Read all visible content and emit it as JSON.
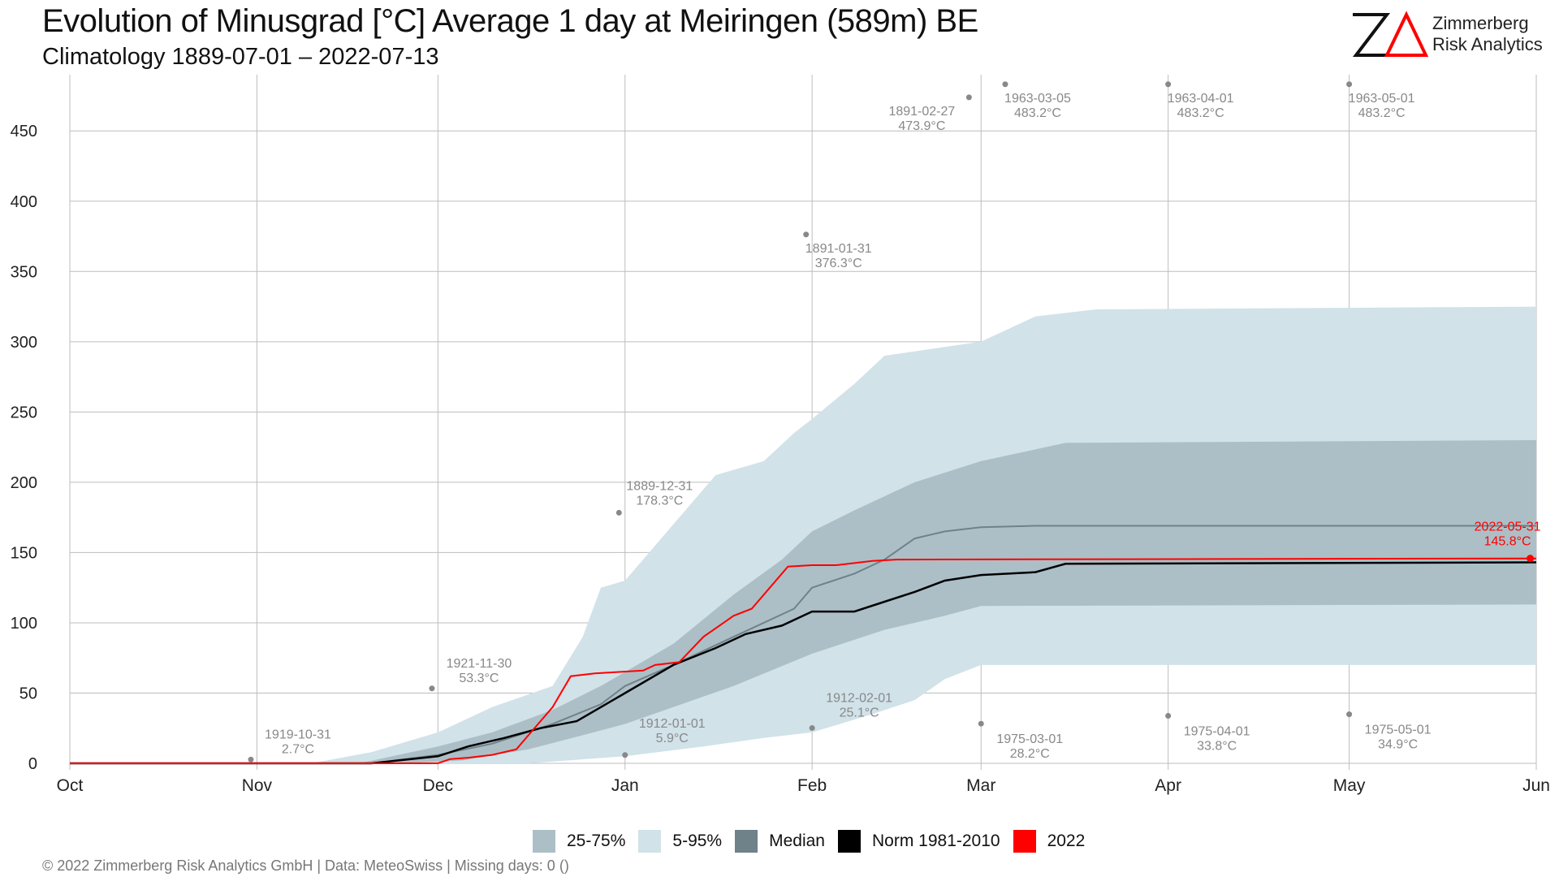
{
  "header": {
    "title": "Evolution of Minusgrad [°C] Average 1 day at Meiringen (589m) BE",
    "subtitle": "Climatology 1889-07-01 – 2022-07-13"
  },
  "logo": {
    "mark": "ZΔ",
    "line1": "Zimmerberg",
    "line2": "Risk Analytics"
  },
  "footer": "©  2022 Zimmerberg Risk Analytics GmbH | Data: MeteoSwiss | Missing days: 0 ()",
  "colors": {
    "band_25_75": "#acbfc6",
    "band_5_95": "#d1e2e9",
    "median": "#6f8189",
    "norm": "#000000",
    "current": "#ff0000",
    "grid": "#bdbdbd",
    "annotation": "#888888"
  },
  "legend": [
    {
      "label": "25-75%",
      "color": "#acbfc6"
    },
    {
      "label": "5-95%",
      "color": "#d1e2e9"
    },
    {
      "label": "Median",
      "color": "#6f8189"
    },
    {
      "label": "Norm 1981-2010",
      "color": "#000000"
    },
    {
      "label": "2022",
      "color": "#ff0000"
    }
  ],
  "chart_data": {
    "type": "area",
    "x_range": [
      "Oct",
      "Jun"
    ],
    "x_ticks": [
      {
        "label": "Oct",
        "day": 0
      },
      {
        "label": "Nov",
        "day": 31
      },
      {
        "label": "Dec",
        "day": 61
      },
      {
        "label": "Jan",
        "day": 92
      },
      {
        "label": "Feb",
        "day": 123
      },
      {
        "label": "Mar",
        "day": 151
      },
      {
        "label": "Apr",
        "day": 182
      },
      {
        "label": "May",
        "day": 212
      },
      {
        "label": "Jun",
        "day": 243
      }
    ],
    "ylim": [
      0,
      490
    ],
    "y_ticks": [
      0,
      50,
      100,
      150,
      200,
      250,
      300,
      350,
      400,
      450
    ],
    "grid": true,
    "legend_position": "bottom",
    "series": [
      {
        "name": "5-95%",
        "kind": "band",
        "lower": [
          [
            0,
            0
          ],
          [
            61,
            0
          ],
          [
            76,
            0
          ],
          [
            92,
            5
          ],
          [
            105,
            12
          ],
          [
            115,
            18
          ],
          [
            123,
            22
          ],
          [
            133,
            35
          ],
          [
            140,
            45
          ],
          [
            145,
            60
          ],
          [
            151,
            70
          ],
          [
            243,
            70
          ]
        ],
        "upper": [
          [
            0,
            0
          ],
          [
            40,
            0
          ],
          [
            50,
            8
          ],
          [
            61,
            22
          ],
          [
            70,
            40
          ],
          [
            80,
            55
          ],
          [
            85,
            90
          ],
          [
            88,
            125
          ],
          [
            92,
            130
          ],
          [
            100,
            170
          ],
          [
            107,
            205
          ],
          [
            115,
            215
          ],
          [
            120,
            235
          ],
          [
            123,
            245
          ],
          [
            130,
            270
          ],
          [
            135,
            290
          ],
          [
            151,
            300
          ],
          [
            160,
            318
          ],
          [
            170,
            323
          ],
          [
            243,
            325
          ]
        ]
      },
      {
        "name": "25-75%",
        "kind": "band",
        "lower": [
          [
            0,
            0
          ],
          [
            55,
            0
          ],
          [
            65,
            2
          ],
          [
            76,
            10
          ],
          [
            85,
            20
          ],
          [
            92,
            28
          ],
          [
            100,
            40
          ],
          [
            110,
            55
          ],
          [
            123,
            78
          ],
          [
            135,
            95
          ],
          [
            145,
            105
          ],
          [
            151,
            112
          ],
          [
            243,
            113
          ]
        ],
        "upper": [
          [
            0,
            0
          ],
          [
            48,
            0
          ],
          [
            61,
            12
          ],
          [
            70,
            22
          ],
          [
            80,
            38
          ],
          [
            88,
            55
          ],
          [
            92,
            65
          ],
          [
            100,
            85
          ],
          [
            110,
            120
          ],
          [
            118,
            145
          ],
          [
            123,
            165
          ],
          [
            130,
            180
          ],
          [
            140,
            200
          ],
          [
            151,
            215
          ],
          [
            165,
            228
          ],
          [
            243,
            230
          ]
        ]
      },
      {
        "name": "Median",
        "kind": "line",
        "points": [
          [
            0,
            0
          ],
          [
            50,
            0
          ],
          [
            61,
            6
          ],
          [
            70,
            14
          ],
          [
            80,
            28
          ],
          [
            88,
            42
          ],
          [
            92,
            55
          ],
          [
            100,
            70
          ],
          [
            110,
            90
          ],
          [
            120,
            110
          ],
          [
            123,
            125
          ],
          [
            130,
            135
          ],
          [
            135,
            145
          ],
          [
            140,
            160
          ],
          [
            145,
            165
          ],
          [
            151,
            168
          ],
          [
            160,
            169
          ],
          [
            243,
            169
          ]
        ]
      },
      {
        "name": "Norm 1981-2010",
        "kind": "line",
        "points": [
          [
            0,
            0
          ],
          [
            50,
            0
          ],
          [
            61,
            5
          ],
          [
            66,
            12
          ],
          [
            72,
            18
          ],
          [
            78,
            25
          ],
          [
            84,
            30
          ],
          [
            92,
            50
          ],
          [
            100,
            70
          ],
          [
            107,
            82
          ],
          [
            112,
            92
          ],
          [
            118,
            98
          ],
          [
            123,
            108
          ],
          [
            130,
            108
          ],
          [
            135,
            115
          ],
          [
            140,
            122
          ],
          [
            145,
            130
          ],
          [
            151,
            134
          ],
          [
            160,
            136
          ],
          [
            165,
            142
          ],
          [
            243,
            143
          ]
        ]
      },
      {
        "name": "2022",
        "kind": "line",
        "points": [
          [
            0,
            0
          ],
          [
            50,
            0
          ],
          [
            61,
            0
          ],
          [
            63,
            3
          ],
          [
            66,
            4
          ],
          [
            70,
            6
          ],
          [
            74,
            10
          ],
          [
            76,
            20
          ],
          [
            80,
            40
          ],
          [
            83,
            62
          ],
          [
            87,
            64
          ],
          [
            91,
            65
          ],
          [
            95,
            66
          ],
          [
            97,
            70
          ],
          [
            101,
            72
          ],
          [
            105,
            90
          ],
          [
            110,
            105
          ],
          [
            113,
            110
          ],
          [
            116,
            125
          ],
          [
            119,
            140
          ],
          [
            123,
            141
          ],
          [
            127,
            141
          ],
          [
            133,
            144
          ],
          [
            137,
            145
          ],
          [
            243,
            145.8
          ]
        ]
      }
    ],
    "annotations": [
      {
        "date": "1919-10-31",
        "value": 2.7,
        "label": "2.7°C",
        "day": 30
      },
      {
        "date": "1921-11-30",
        "value": 53.3,
        "label": "53.3°C",
        "day": 60
      },
      {
        "date": "1889-12-31",
        "value": 178.3,
        "label": "178.3°C",
        "day": 91
      },
      {
        "date": "1912-01-01",
        "value": 5.9,
        "label": "5.9°C",
        "day": 92
      },
      {
        "date": "1891-01-31",
        "value": 376.3,
        "label": "376.3°C",
        "day": 122
      },
      {
        "date": "1912-02-01",
        "value": 25.1,
        "label": "25.1°C",
        "day": 123
      },
      {
        "date": "1891-02-27",
        "value": 473.9,
        "label": "473.9°C",
        "day": 149
      },
      {
        "date": "1963-03-05",
        "value": 483.2,
        "label": "483.2°C",
        "day": 155
      },
      {
        "date": "1975-03-01",
        "value": 28.2,
        "label": "28.2°C",
        "day": 151
      },
      {
        "date": "1963-04-01",
        "value": 483.2,
        "label": "483.2°C",
        "day": 182
      },
      {
        "date": "1975-04-01",
        "value": 33.8,
        "label": "33.8°C",
        "day": 182
      },
      {
        "date": "1963-05-01",
        "value": 483.2,
        "label": "483.2°C",
        "day": 212
      },
      {
        "date": "1975-05-01",
        "value": 34.9,
        "label": "34.9°C",
        "day": 212
      },
      {
        "date": "2022-05-31",
        "value": 145.8,
        "label": "145.8°C",
        "day": 242,
        "highlight": true
      }
    ]
  }
}
